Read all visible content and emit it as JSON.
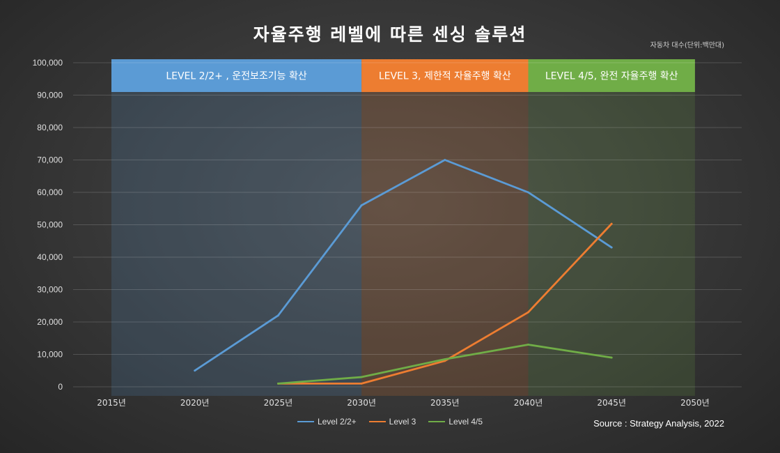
{
  "title": "자율주행 레벨에 따른 센싱 솔루션",
  "unit_note": "자동차 대수(단위:백만대)",
  "source": "Source : Strategy Analysis, 2022",
  "chart_data": {
    "type": "line",
    "x": [
      "2015년",
      "2020년",
      "2025년",
      "2030년",
      "2035년",
      "2040년",
      "2045년",
      "2050년"
    ],
    "xvals": [
      2015,
      2020,
      2025,
      2030,
      2035,
      2040,
      2045,
      2050
    ],
    "ylim": [
      0,
      100000
    ],
    "yticks": [
      0,
      10000,
      20000,
      30000,
      40000,
      50000,
      60000,
      70000,
      80000,
      90000,
      100000
    ],
    "ytick_labels": [
      "0",
      "10,000",
      "20,000",
      "30,000",
      "40,000",
      "50,000",
      "60,000",
      "70,000",
      "80,000",
      "90,000",
      "100,000"
    ],
    "grid": true,
    "legend_position": "bottom",
    "series": [
      {
        "name": "Level 2/2+",
        "color": "#5b9bd5",
        "points": [
          [
            2020,
            5000
          ],
          [
            2025,
            22000
          ],
          [
            2030,
            56000
          ],
          [
            2035,
            70000
          ],
          [
            2040,
            60000
          ],
          [
            2045,
            43000
          ]
        ]
      },
      {
        "name": "Level 3",
        "color": "#ed7d31",
        "points": [
          [
            2025,
            1000
          ],
          [
            2030,
            1000
          ],
          [
            2035,
            8000
          ],
          [
            2040,
            23000
          ],
          [
            2045,
            50300
          ]
        ]
      },
      {
        "name": "Level 4/5",
        "color": "#70ad47",
        "points": [
          [
            2025,
            1000
          ],
          [
            2030,
            3000
          ],
          [
            2035,
            8500
          ],
          [
            2040,
            13000
          ],
          [
            2045,
            9000
          ]
        ]
      }
    ],
    "bands": [
      {
        "label": "LEVEL 2/2+ , 운전보조기능 확산",
        "from": 2015,
        "to": 2030,
        "color": "#5b9bd5"
      },
      {
        "label": "LEVEL 3, 제한적 자율주행 확산",
        "from": 2030,
        "to": 2040,
        "color": "#ed7d31"
      },
      {
        "label": "LEVEL 4/5, 완전 자율주행 확산",
        "from": 2040,
        "to": 2050,
        "color": "#70ad47"
      }
    ]
  }
}
